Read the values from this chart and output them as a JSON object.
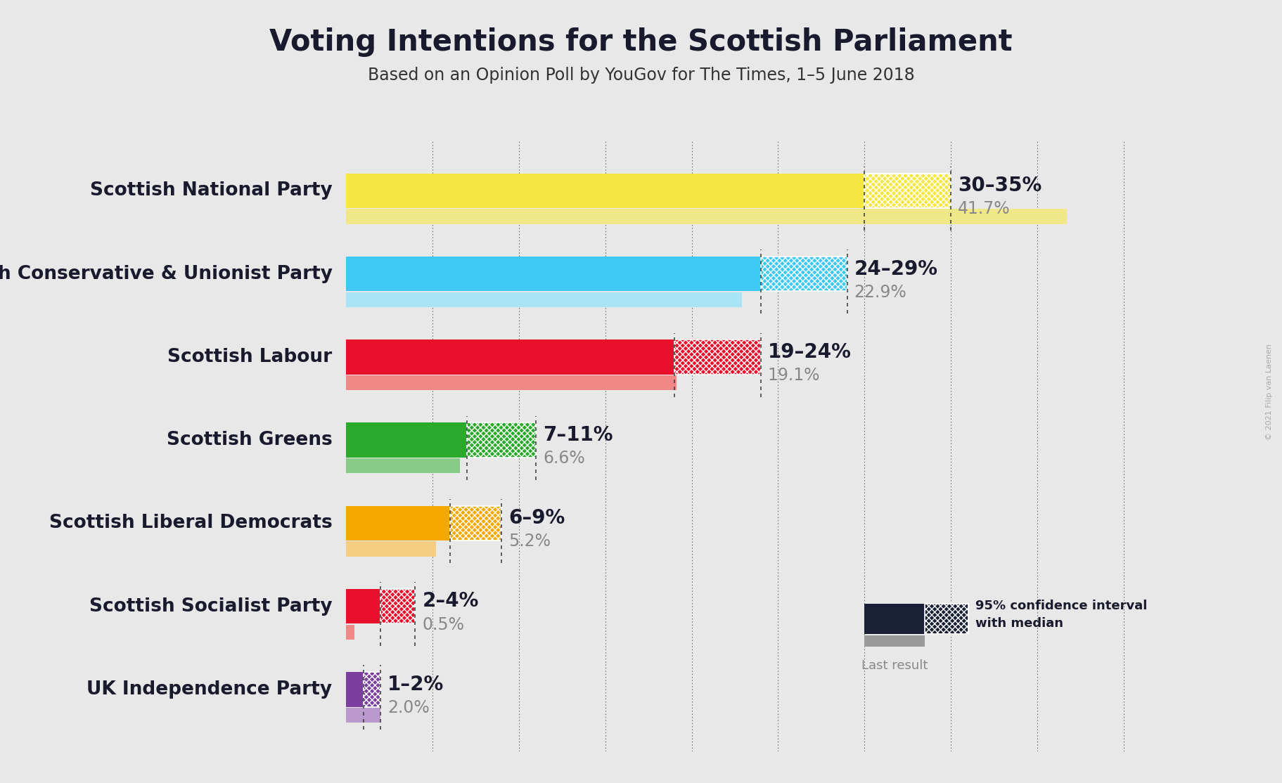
{
  "title": "Voting Intentions for the Scottish Parliament",
  "subtitle": "Based on an Opinion Poll by YouGov for The Times, 1–5 June 2018",
  "background_color": "#e8e8e8",
  "parties": [
    "Scottish National Party",
    "Scottish Conservative & Unionist Party",
    "Scottish Labour",
    "Scottish Greens",
    "Scottish Liberal Democrats",
    "Scottish Socialist Party",
    "UK Independence Party"
  ],
  "colors": [
    "#f5e642",
    "#3ec9f5",
    "#e8102a",
    "#2aaa2a",
    "#f5a800",
    "#e8102a",
    "#7b3fa0"
  ],
  "colors_light": [
    "#f0e888",
    "#a8e4f5",
    "#f08888",
    "#88cc88",
    "#f5cc80",
    "#f08888",
    "#bb99cc"
  ],
  "ci_low": [
    30,
    24,
    19,
    7,
    6,
    2,
    1
  ],
  "ci_high": [
    35,
    29,
    24,
    11,
    9,
    4,
    2
  ],
  "last_result": [
    41.7,
    22.9,
    19.1,
    6.6,
    5.2,
    0.5,
    2.0
  ],
  "ci_labels": [
    "30–35%",
    "24–29%",
    "19–24%",
    "7–11%",
    "6–9%",
    "2–4%",
    "1–2%"
  ],
  "last_labels": [
    "41.7%",
    "22.9%",
    "19.1%",
    "6.6%",
    "5.2%",
    "0.5%",
    "2.0%"
  ],
  "title_fontsize": 30,
  "subtitle_fontsize": 17,
  "label_fontsize": 19,
  "annot_fontsize": 20,
  "copyright_text": "© 2021 Filip van Laenen",
  "legend_ci_text": "95% confidence interval\nwith median",
  "legend_last_text": "Last result"
}
